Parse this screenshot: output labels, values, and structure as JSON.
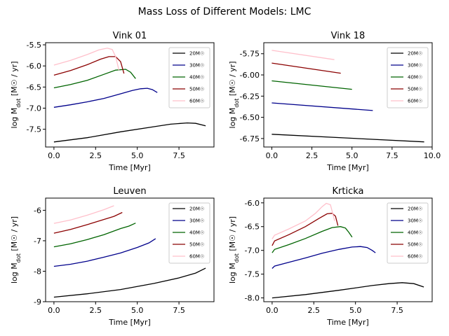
{
  "figure": {
    "title": "Mass Loss of Different Models: LMC"
  },
  "legend_labels": [
    "20M☉",
    "30M☉",
    "40M☉",
    "50M☉",
    "60M☉"
  ],
  "colors": {
    "20": "#000000",
    "30": "#00008b",
    "40": "#006400",
    "50": "#8b0000",
    "60": "#ffc0cb"
  },
  "chart_data": [
    {
      "type": "line",
      "title": "Vink 01",
      "xlabel": "Time [Myr]",
      "ylabel": "log M_dot [M☉ / yr]",
      "xlim": [
        -0.5,
        9.6
      ],
      "ylim": [
        -7.92,
        -5.45
      ],
      "xticks": [
        0.0,
        2.5,
        5.0,
        7.5
      ],
      "xtick_labels": [
        "0.0",
        "2.5",
        "5.0",
        "7.5"
      ],
      "yticks": [
        -7.5,
        -7.0,
        -6.5,
        -6.0,
        -5.5
      ],
      "ytick_labels": [
        "-7.5",
        "-7.0",
        "-6.5",
        "-6.0",
        "-5.5"
      ],
      "legend": "upper right",
      "series": [
        {
          "name": "20M☉",
          "color": "#000000",
          "x": [
            0,
            2,
            4,
            6,
            7,
            8,
            8.5,
            9.1
          ],
          "y": [
            -7.8,
            -7.7,
            -7.56,
            -7.44,
            -7.38,
            -7.35,
            -7.36,
            -7.42
          ]
        },
        {
          "name": "30M☉",
          "color": "#00008b",
          "x": [
            0,
            1,
            2,
            3,
            4,
            4.7,
            5.2,
            5.6,
            5.9,
            6.2
          ],
          "y": [
            -6.98,
            -6.92,
            -6.85,
            -6.77,
            -6.66,
            -6.58,
            -6.54,
            -6.53,
            -6.56,
            -6.63
          ]
        },
        {
          "name": "40M☉",
          "color": "#006400",
          "x": [
            0,
            1,
            2,
            3,
            3.7,
            4.3,
            4.6,
            4.9
          ],
          "y": [
            -6.52,
            -6.44,
            -6.34,
            -6.2,
            -6.1,
            -6.08,
            -6.15,
            -6.3
          ]
        },
        {
          "name": "50M☉",
          "color": "#8b0000",
          "x": [
            0,
            1,
            2,
            2.8,
            3.3,
            3.7,
            4.0,
            4.2
          ],
          "y": [
            -6.22,
            -6.11,
            -5.97,
            -5.84,
            -5.78,
            -5.78,
            -5.9,
            -6.18
          ]
        },
        {
          "name": "60M☉",
          "color": "#ffc0cb",
          "x": [
            0,
            1,
            2,
            2.7,
            3.2,
            3.5,
            3.7,
            3.9
          ],
          "y": [
            -5.98,
            -5.87,
            -5.73,
            -5.62,
            -5.58,
            -5.61,
            -5.78,
            -6.1
          ]
        }
      ]
    },
    {
      "type": "line",
      "title": "Vink 18",
      "xlabel": "Time [Myr]",
      "ylabel": "log M_dot [M☉ / yr]",
      "xlim": [
        -0.5,
        10.0
      ],
      "ylim": [
        -6.85,
        -5.62
      ],
      "xticks": [
        0.0,
        2.5,
        5.0,
        7.5,
        10.0
      ],
      "xtick_labels": [
        "0.0",
        "2.5",
        "5.0",
        "7.5",
        "10.0"
      ],
      "yticks": [
        -6.75,
        -6.5,
        -6.25,
        -6.0,
        -5.75
      ],
      "ytick_labels": [
        "-6.75",
        "-6.50",
        "-6.25",
        "-6.00",
        "-5.75"
      ],
      "legend": "upper right",
      "series": [
        {
          "name": "20M☉",
          "color": "#000000",
          "x": [
            0,
            9.5
          ],
          "y": [
            -6.7,
            -6.79
          ]
        },
        {
          "name": "30M☉",
          "color": "#00008b",
          "x": [
            0,
            6.3
          ],
          "y": [
            -6.33,
            -6.42
          ]
        },
        {
          "name": "40M☉",
          "color": "#006400",
          "x": [
            0,
            5.0
          ],
          "y": [
            -6.07,
            -6.17
          ]
        },
        {
          "name": "50M☉",
          "color": "#8b0000",
          "x": [
            0,
            4.3
          ],
          "y": [
            -5.86,
            -5.98
          ]
        },
        {
          "name": "60M☉",
          "color": "#ffc0cb",
          "x": [
            0,
            3.9
          ],
          "y": [
            -5.71,
            -5.82
          ]
        }
      ]
    },
    {
      "type": "line",
      "title": "Leuven",
      "xlabel": "Time [Myr]",
      "ylabel": "log M_dot [M☉ / yr]",
      "xlim": [
        -0.5,
        9.6
      ],
      "ylim": [
        -9.0,
        -5.6
      ],
      "xticks": [
        0.0,
        2.5,
        5.0,
        7.5
      ],
      "xtick_labels": [
        "0.0",
        "2.5",
        "5.0",
        "7.5"
      ],
      "yticks": [
        -9,
        -8,
        -7,
        -6
      ],
      "ytick_labels": [
        "-9",
        "-8",
        "-7",
        "-6"
      ],
      "legend": "upper right",
      "series": [
        {
          "name": "20M☉",
          "color": "#000000",
          "x": [
            0,
            2,
            4,
            6,
            7.5,
            8.5,
            9.1
          ],
          "y": [
            -8.85,
            -8.74,
            -8.6,
            -8.4,
            -8.22,
            -8.06,
            -7.9
          ]
        },
        {
          "name": "30M☉",
          "color": "#00008b",
          "x": [
            0,
            1,
            2,
            3,
            4,
            5,
            5.7,
            6.1
          ],
          "y": [
            -7.84,
            -7.77,
            -7.67,
            -7.54,
            -7.4,
            -7.22,
            -7.07,
            -6.93
          ]
        },
        {
          "name": "40M☉",
          "color": "#006400",
          "x": [
            0,
            1,
            2,
            3,
            4,
            4.5,
            4.9
          ],
          "y": [
            -7.2,
            -7.1,
            -6.96,
            -6.8,
            -6.6,
            -6.52,
            -6.42
          ]
        },
        {
          "name": "50M☉",
          "color": "#8b0000",
          "x": [
            0,
            1,
            2,
            3,
            3.6,
            4.1
          ],
          "y": [
            -6.75,
            -6.63,
            -6.47,
            -6.3,
            -6.2,
            -6.07
          ]
        },
        {
          "name": "60M☉",
          "color": "#ffc0cb",
          "x": [
            0,
            1,
            2,
            3,
            3.6
          ],
          "y": [
            -6.43,
            -6.32,
            -6.16,
            -5.98,
            -5.85
          ]
        }
      ]
    },
    {
      "type": "line",
      "title": "Krticka",
      "xlabel": "Time [Myr]",
      "ylabel": "log M_dot [M☉ / yr]",
      "xlim": [
        -0.5,
        9.6
      ],
      "ylim": [
        -8.08,
        -5.9
      ],
      "xticks": [
        0.0,
        2.5,
        5.0,
        7.5
      ],
      "xtick_labels": [
        "0.0",
        "2.5",
        "5.0",
        "7.5"
      ],
      "yticks": [
        -8.0,
        -7.5,
        -7.0,
        -6.5,
        -6.0
      ],
      "ytick_labels": [
        "-8.0",
        "-7.5",
        "-7.0",
        "-6.5",
        "-6.0"
      ],
      "legend": "upper right",
      "series": [
        {
          "name": "20M☉",
          "color": "#000000",
          "x": [
            0,
            2,
            4,
            6,
            7,
            7.8,
            8.5,
            9.1
          ],
          "y": [
            -8.0,
            -7.93,
            -7.84,
            -7.74,
            -7.7,
            -7.68,
            -7.7,
            -7.77
          ]
        },
        {
          "name": "30M☉",
          "color": "#00008b",
          "x": [
            0,
            0.15,
            1,
            2,
            3,
            4,
            4.8,
            5.3,
            5.7,
            6.0,
            6.2
          ],
          "y": [
            -7.38,
            -7.33,
            -7.25,
            -7.16,
            -7.06,
            -6.98,
            -6.93,
            -6.92,
            -6.94,
            -7.0,
            -7.05
          ]
        },
        {
          "name": "40M☉",
          "color": "#006400",
          "x": [
            0,
            0.15,
            1,
            2,
            3,
            3.6,
            4.1,
            4.4,
            4.6,
            4.8
          ],
          "y": [
            -7.05,
            -6.98,
            -6.88,
            -6.75,
            -6.6,
            -6.52,
            -6.5,
            -6.53,
            -6.62,
            -6.72
          ]
        },
        {
          "name": "50M☉",
          "color": "#8b0000",
          "x": [
            0,
            0.15,
            1,
            2,
            2.8,
            3.3,
            3.6,
            3.8,
            3.95
          ],
          "y": [
            -6.9,
            -6.8,
            -6.67,
            -6.5,
            -6.33,
            -6.23,
            -6.22,
            -6.28,
            -6.48
          ]
        },
        {
          "name": "60M☉",
          "color": "#ffc0cb",
          "x": [
            0,
            0.15,
            1,
            2,
            2.6,
            3.0,
            3.25,
            3.5,
            3.75
          ],
          "y": [
            -6.76,
            -6.68,
            -6.55,
            -6.38,
            -6.22,
            -6.08,
            -6.01,
            -6.04,
            -6.38
          ]
        }
      ]
    }
  ]
}
